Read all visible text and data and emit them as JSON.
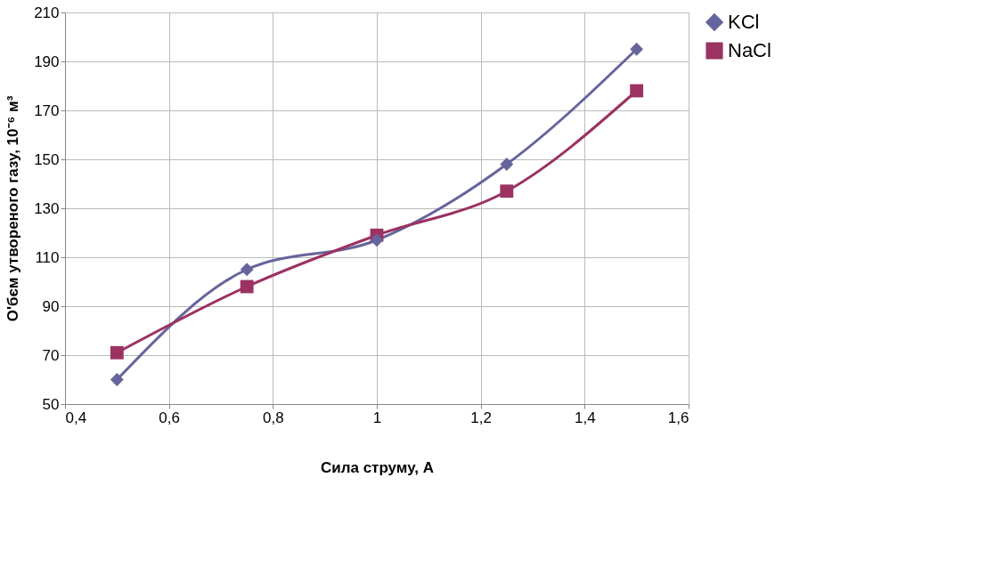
{
  "chart_data": {
    "type": "line",
    "xlabel": "Сила струму, А",
    "ylabel": "О'бєм утвореного газу, 10⁻⁶ м³",
    "x": [
      0.5,
      0.75,
      1,
      1.25,
      1.5
    ],
    "series": [
      {
        "name": "KCl",
        "color": "#65649c",
        "marker": "diamond",
        "values": [
          60,
          105,
          117,
          148,
          195
        ]
      },
      {
        "name": "NaCl",
        "color": "#9b3262",
        "marker": "square",
        "values": [
          71,
          98,
          119,
          137,
          178
        ]
      }
    ],
    "xlim": [
      0.4,
      1.6
    ],
    "xticks": [
      {
        "value": 0.4,
        "label": "0,4"
      },
      {
        "value": 0.6,
        "label": "0,6"
      },
      {
        "value": 0.8,
        "label": "0,8"
      },
      1,
      {
        "value": 1.2,
        "label": "1,2"
      },
      {
        "value": 1.4,
        "label": "1,4"
      },
      {
        "value": 1.6,
        "label": "1,6"
      }
    ],
    "ylim": [
      50,
      210
    ],
    "yticks": [
      50,
      70,
      90,
      110,
      130,
      150,
      170,
      190,
      210
    ],
    "grid": true,
    "legend": "right",
    "line_style": "solid"
  }
}
